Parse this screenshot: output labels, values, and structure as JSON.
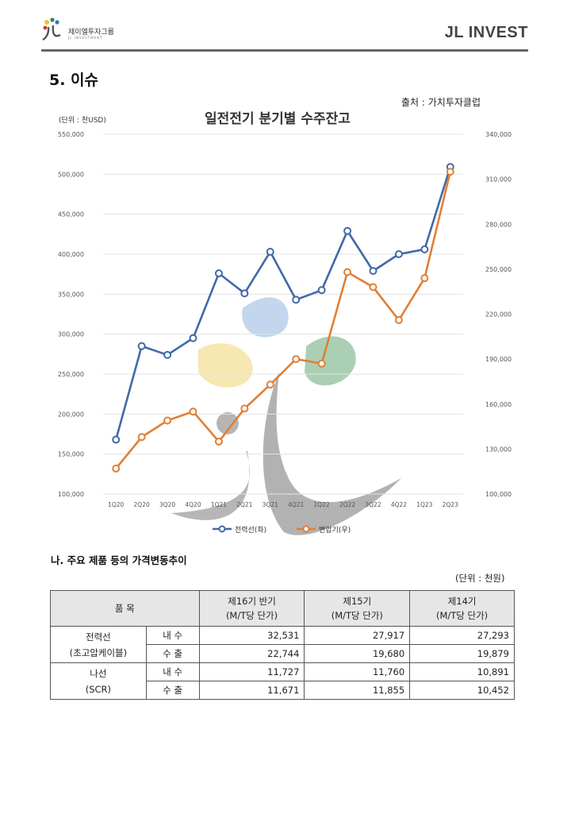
{
  "header": {
    "logo_text": "제이엘투자그룹",
    "logo_sub": "JL INVESTMENT",
    "brand": "JL INVEST"
  },
  "section": {
    "title": "5. 이슈",
    "source": "출처 : 가치투자클럽"
  },
  "chart_data": {
    "type": "line",
    "title": "일전전기 분기별 수주잔고",
    "unit_label": "(단위 : 천USD)",
    "categories": [
      "1Q20",
      "2Q20",
      "3Q20",
      "4Q20",
      "1Q21",
      "2Q21",
      "3Q21",
      "4Q21",
      "1Q22",
      "2Q22",
      "3Q22",
      "4Q22",
      "1Q23",
      "2Q23"
    ],
    "y_left": {
      "min": 100000,
      "max": 550000,
      "step": 50000,
      "ticks": [
        "100,000",
        "150,000",
        "200,000",
        "250,000",
        "300,000",
        "350,000",
        "400,000",
        "450,000",
        "500,000",
        "550,000"
      ]
    },
    "y_right": {
      "min": 100000,
      "max": 340000,
      "step": 30000,
      "ticks": [
        "100,000",
        "130,000",
        "160,000",
        "190,000",
        "220,000",
        "250,000",
        "280,000",
        "310,000",
        "340,000"
      ]
    },
    "grid": true,
    "legend_position": "bottom",
    "series": [
      {
        "name": "전력선(좌)",
        "axis": "left",
        "color": "#4169a8",
        "values": [
          168000,
          285000,
          274000,
          295000,
          376000,
          351000,
          403000,
          343000,
          355000,
          429000,
          379000,
          400000,
          406000,
          509000
        ]
      },
      {
        "name": "변압기(우)",
        "axis": "right",
        "color": "#e07f35",
        "values": [
          117000,
          138000,
          149000,
          155000,
          135000,
          157000,
          173000,
          190000,
          187000,
          248000,
          238000,
          216000,
          244000,
          315000
        ]
      }
    ]
  },
  "table": {
    "title": "나. 주요 제품 등의 가격변동추이",
    "unit": "(단위 : 천원)",
    "headers": {
      "item": "품 목",
      "col1_a": "제16기 반기",
      "col1_b": "(M/T당 단가)",
      "col2_a": "제15기",
      "col2_b": "(M/T당 단가)",
      "col3_a": "제14기",
      "col3_b": "(M/T당 단가)"
    },
    "groups": [
      {
        "name_a": "전력선",
        "name_b": "(초고압케이블)",
        "rows": [
          {
            "type": "내 수",
            "v16": "32,531",
            "v15": "27,917",
            "v14": "27,293"
          },
          {
            "type": "수 출",
            "v16": "22,744",
            "v15": "19,680",
            "v14": "19,879"
          }
        ]
      },
      {
        "name_a": "나선",
        "name_b": "(SCR)",
        "rows": [
          {
            "type": "내 수",
            "v16": "11,727",
            "v15": "11,760",
            "v14": "10,891"
          },
          {
            "type": "수 출",
            "v16": "11,671",
            "v15": "11,855",
            "v14": "10,452"
          }
        ]
      }
    ]
  }
}
